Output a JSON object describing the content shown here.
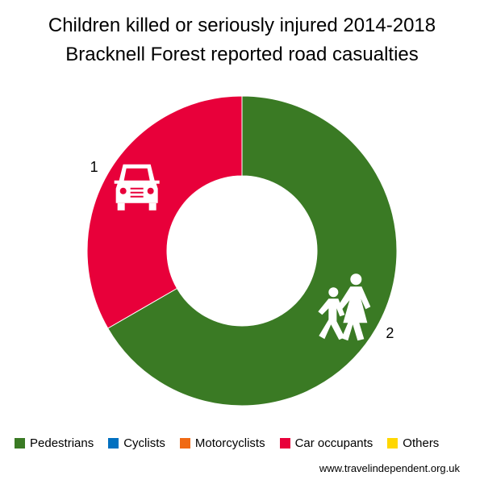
{
  "chart_data": {
    "type": "pie",
    "title": "Children killed or seriously injured 2014-2018",
    "subtitle": "Bracknell Forest reported road casualties",
    "legend_position": "bottom",
    "categories": [
      "Pedestrians",
      "Cyclists",
      "Motorcyclists",
      "Car occupants",
      "Others"
    ],
    "values": [
      2,
      0,
      0,
      1,
      0
    ],
    "colors": [
      "#3a7a24",
      "#0070c0",
      "#f06a14",
      "#e8003a",
      "#ffd700"
    ],
    "data_labels": [
      "2",
      "",
      "",
      "1",
      ""
    ],
    "icons": [
      "pedestrians-icon",
      "",
      "",
      "car-icon",
      ""
    ]
  },
  "footer": {
    "website": "www.travelindependent.org.uk"
  }
}
